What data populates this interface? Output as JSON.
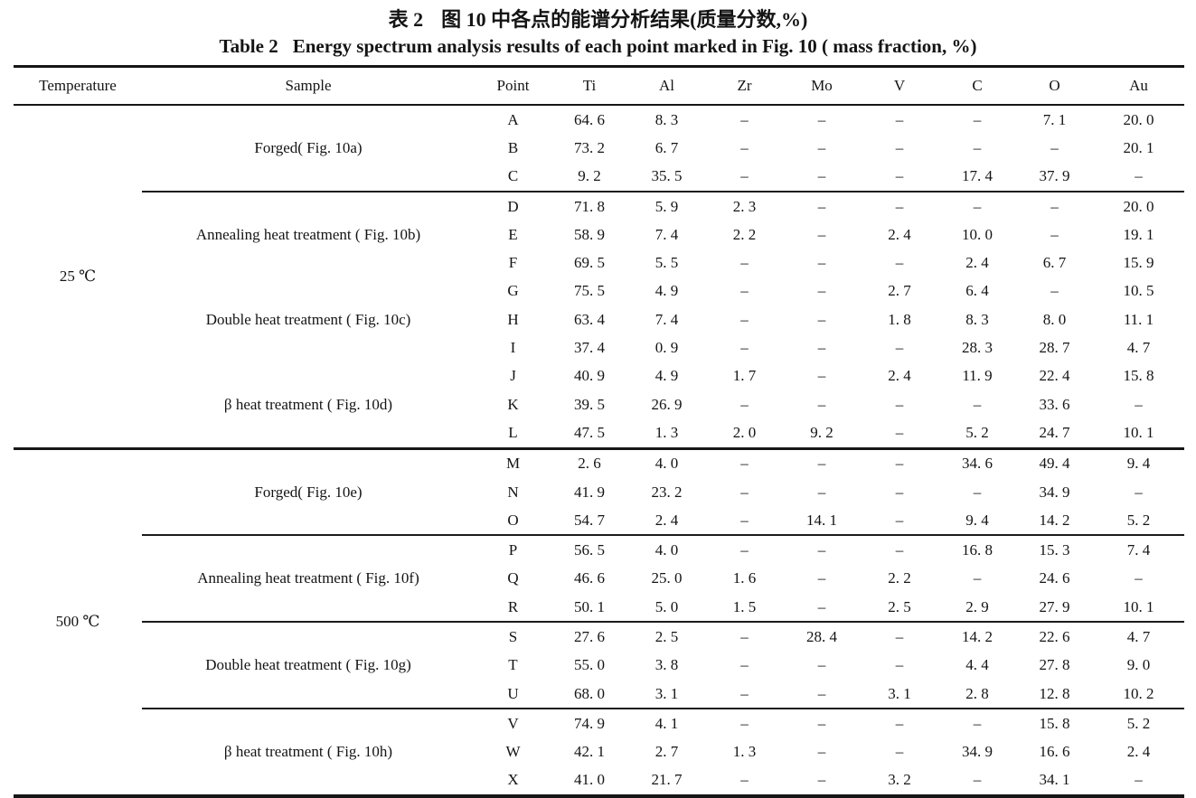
{
  "titles": {
    "zh_label": "表 2",
    "zh_text": "图 10 中各点的能谱分析结果(质量分数,%)",
    "en_label": "Table 2",
    "en_text": "Energy spectrum analysis results of each point marked in Fig. 10 ( mass fraction, %)"
  },
  "table": {
    "columns": [
      "Temperature",
      "Sample",
      "Point",
      "Ti",
      "Al",
      "Zr",
      "Mo",
      "V",
      "C",
      "O",
      "Au"
    ],
    "sections": [
      {
        "temperature": "25 ℃",
        "groups": [
          {
            "sample": "Forged( Fig. 10a)",
            "divider_after": true,
            "rows": [
              {
                "point": "A",
                "values": [
                  "64. 6",
                  "8. 3",
                  "–",
                  "–",
                  "–",
                  "–",
                  "7. 1",
                  "20. 0"
                ]
              },
              {
                "point": "B",
                "values": [
                  "73. 2",
                  "6. 7",
                  "–",
                  "–",
                  "–",
                  "–",
                  "–",
                  "20. 1"
                ]
              },
              {
                "point": "C",
                "values": [
                  "9. 2",
                  "35. 5",
                  "–",
                  "–",
                  "–",
                  "17. 4",
                  "37. 9",
                  "–"
                ]
              }
            ]
          },
          {
            "sample": "Annealing heat treatment ( Fig. 10b)",
            "divider_after": false,
            "rows": [
              {
                "point": "D",
                "values": [
                  "71. 8",
                  "5. 9",
                  "2. 3",
                  "–",
                  "–",
                  "–",
                  "–",
                  "20. 0"
                ]
              },
              {
                "point": "E",
                "values": [
                  "58. 9",
                  "7. 4",
                  "2. 2",
                  "–",
                  "2. 4",
                  "10. 0",
                  "–",
                  "19. 1"
                ]
              },
              {
                "point": "F",
                "values": [
                  "69. 5",
                  "5. 5",
                  "–",
                  "–",
                  "–",
                  "2. 4",
                  "6. 7",
                  "15. 9"
                ]
              }
            ]
          },
          {
            "sample": "Double heat treatment ( Fig. 10c)",
            "divider_after": false,
            "rows": [
              {
                "point": "G",
                "values": [
                  "75. 5",
                  "4. 9",
                  "–",
                  "–",
                  "2. 7",
                  "6. 4",
                  "–",
                  "10. 5"
                ]
              },
              {
                "point": "H",
                "values": [
                  "63. 4",
                  "7. 4",
                  "–",
                  "–",
                  "1. 8",
                  "8. 3",
                  "8. 0",
                  "11. 1"
                ]
              },
              {
                "point": "I",
                "values": [
                  "37. 4",
                  "0. 9",
                  "–",
                  "–",
                  "–",
                  "28. 3",
                  "28. 7",
                  "4. 7"
                ]
              }
            ]
          },
          {
            "sample": "β heat treatment ( Fig. 10d)",
            "divider_after": false,
            "rows": [
              {
                "point": "J",
                "values": [
                  "40. 9",
                  "4. 9",
                  "1. 7",
                  "–",
                  "2. 4",
                  "11. 9",
                  "22. 4",
                  "15. 8"
                ]
              },
              {
                "point": "K",
                "values": [
                  "39. 5",
                  "26. 9",
                  "–",
                  "–",
                  "–",
                  "–",
                  "33. 6",
                  "–"
                ]
              },
              {
                "point": "L",
                "values": [
                  "47. 5",
                  "1. 3",
                  "2. 0",
                  "9. 2",
                  "–",
                  "5. 2",
                  "24. 7",
                  "10. 1"
                ]
              }
            ]
          }
        ]
      },
      {
        "temperature": "500 ℃",
        "groups": [
          {
            "sample": "Forged( Fig. 10e)",
            "divider_after": true,
            "rows": [
              {
                "point": "M",
                "values": [
                  "2. 6",
                  "4. 0",
                  "–",
                  "–",
                  "–",
                  "34. 6",
                  "49. 4",
                  "9. 4"
                ]
              },
              {
                "point": "N",
                "values": [
                  "41. 9",
                  "23. 2",
                  "–",
                  "–",
                  "–",
                  "–",
                  "34. 9",
                  "–"
                ]
              },
              {
                "point": "O",
                "values": [
                  "54. 7",
                  "2. 4",
                  "–",
                  "14. 1",
                  "–",
                  "9. 4",
                  "14. 2",
                  "5. 2"
                ]
              }
            ]
          },
          {
            "sample": "Annealing heat treatment ( Fig. 10f)",
            "divider_after": true,
            "rows": [
              {
                "point": "P",
                "values": [
                  "56. 5",
                  "4. 0",
                  "–",
                  "–",
                  "–",
                  "16. 8",
                  "15. 3",
                  "7. 4"
                ]
              },
              {
                "point": "Q",
                "values": [
                  "46. 6",
                  "25. 0",
                  "1. 6",
                  "–",
                  "2. 2",
                  "–",
                  "24. 6",
                  "–"
                ]
              },
              {
                "point": "R",
                "values": [
                  "50. 1",
                  "5. 0",
                  "1. 5",
                  "–",
                  "2. 5",
                  "2. 9",
                  "27. 9",
                  "10. 1"
                ]
              }
            ]
          },
          {
            "sample": "Double heat treatment ( Fig. 10g)",
            "divider_after": true,
            "rows": [
              {
                "point": "S",
                "values": [
                  "27. 6",
                  "2. 5",
                  "–",
                  "28. 4",
                  "–",
                  "14. 2",
                  "22. 6",
                  "4. 7"
                ]
              },
              {
                "point": "T",
                "values": [
                  "55. 0",
                  "3. 8",
                  "–",
                  "–",
                  "–",
                  "4. 4",
                  "27. 8",
                  "9. 0"
                ]
              },
              {
                "point": "U",
                "values": [
                  "68. 0",
                  "3. 1",
                  "–",
                  "–",
                  "3. 1",
                  "2. 8",
                  "12. 8",
                  "10. 2"
                ]
              }
            ]
          },
          {
            "sample": "β heat treatment ( Fig. 10h)",
            "divider_after": false,
            "rows": [
              {
                "point": "V",
                "values": [
                  "74. 9",
                  "4. 1",
                  "–",
                  "–",
                  "–",
                  "–",
                  "15. 8",
                  "5. 2"
                ]
              },
              {
                "point": "W",
                "values": [
                  "42. 1",
                  "2. 7",
                  "1. 3",
                  "–",
                  "–",
                  "34. 9",
                  "16. 6",
                  "2. 4"
                ]
              },
              {
                "point": "X",
                "values": [
                  "41. 0",
                  "21. 7",
                  "–",
                  "–",
                  "3. 2",
                  "–",
                  "34. 1",
                  "–"
                ]
              }
            ]
          }
        ]
      }
    ]
  }
}
